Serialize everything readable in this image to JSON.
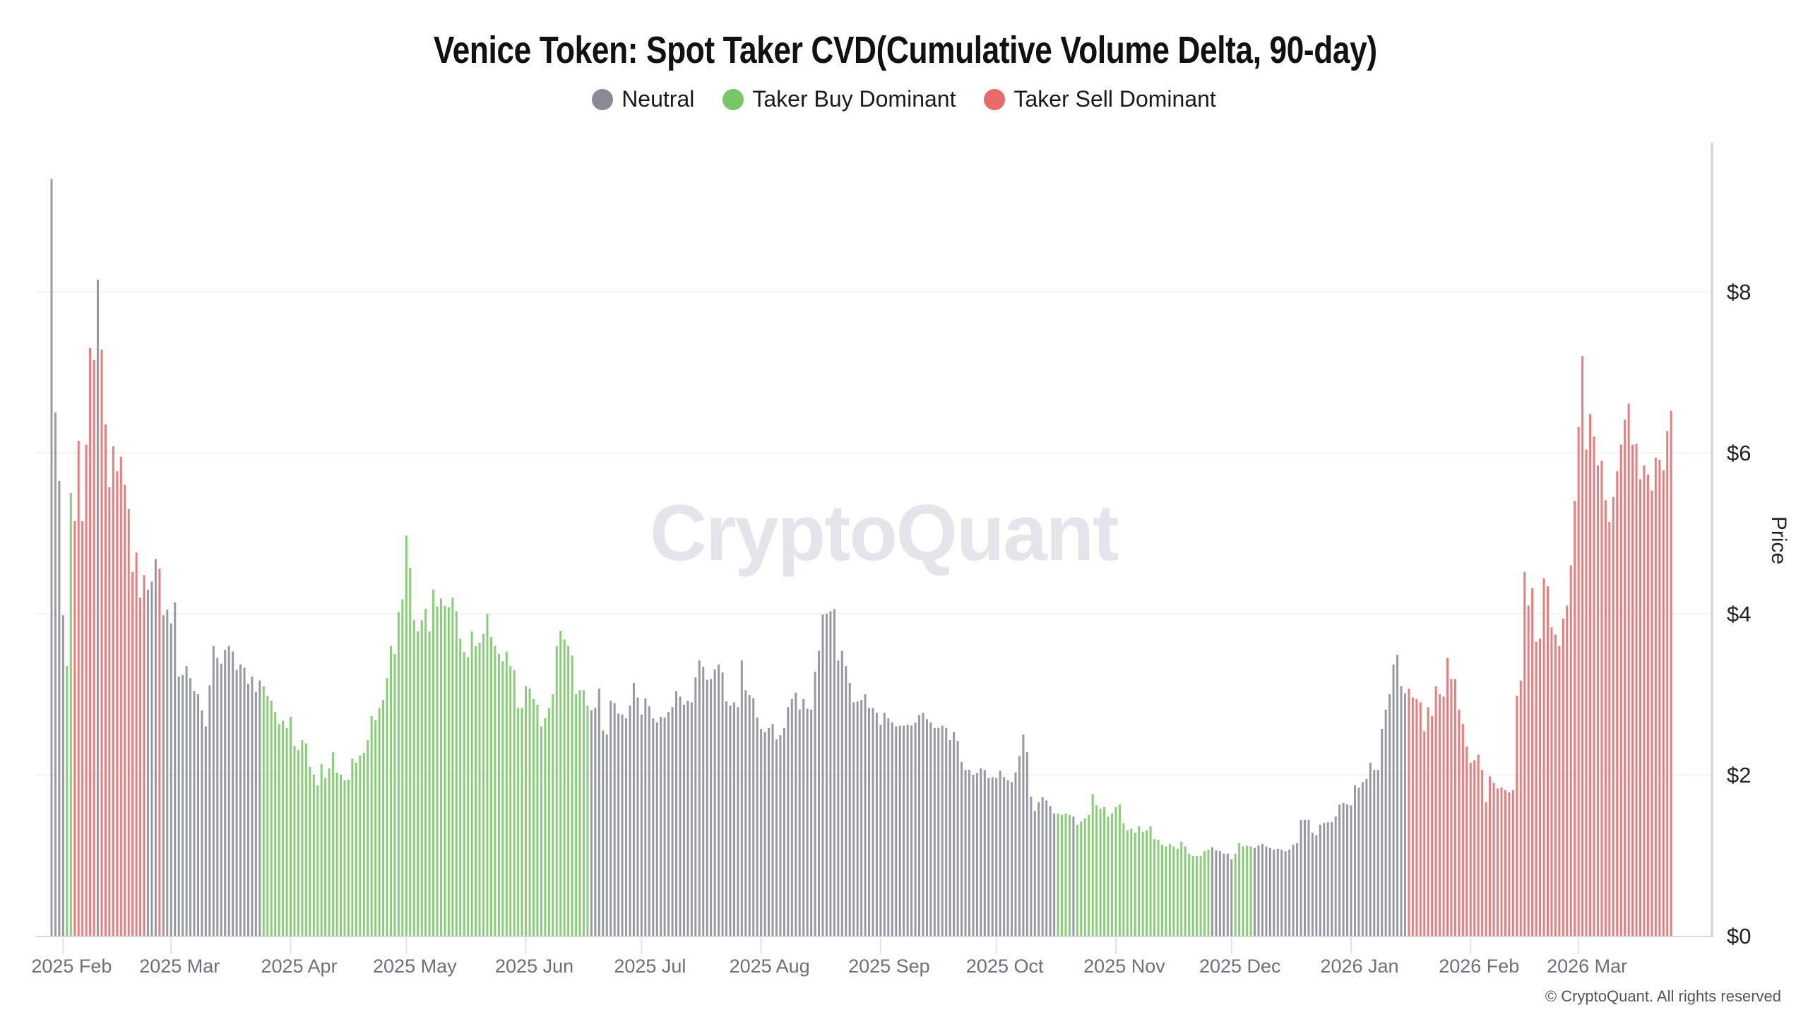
{
  "title": "Venice Token: Spot Taker CVD(Cumulative Volume Delta, 90-day)",
  "legend": [
    {
      "label": "Neutral",
      "color": "#8a8a97"
    },
    {
      "label": "Taker Buy Dominant",
      "color": "#78c664"
    },
    {
      "label": "Taker Sell Dominant",
      "color": "#e86a6a"
    }
  ],
  "watermark": "CryptoQuant",
  "copyright": "© CryptoQuant. All rights reserved",
  "chart_data": {
    "type": "bar",
    "title": "Venice Token: Spot Taker CVD(Cumulative Volume Delta, 90-day)",
    "ylabel": "Price",
    "y_axis_side": "right",
    "ylim": [
      0,
      9.6
    ],
    "y_ticks": [
      0,
      2,
      4,
      6,
      8
    ],
    "y_tick_labels": [
      "$0",
      "$2",
      "$4",
      "$6",
      "$8"
    ],
    "grid": true,
    "legend_placement": "top-center",
    "x_start_date": "2025-01-29",
    "x_end_date": "2026-03-25",
    "x_interval": "daily",
    "x_ticks": [
      {
        "date": "2025-02-01",
        "label": "2025 Feb"
      },
      {
        "date": "2025-03-01",
        "label": "2025 Mar"
      },
      {
        "date": "2025-04-01",
        "label": "2025 Apr"
      },
      {
        "date": "2025-05-01",
        "label": "2025 May"
      },
      {
        "date": "2025-06-01",
        "label": "2025 Jun"
      },
      {
        "date": "2025-07-01",
        "label": "2025 Jul"
      },
      {
        "date": "2025-08-01",
        "label": "2025 Aug"
      },
      {
        "date": "2025-09-01",
        "label": "2025 Sep"
      },
      {
        "date": "2025-10-01",
        "label": "2025 Oct"
      },
      {
        "date": "2025-11-01",
        "label": "2025 Nov"
      },
      {
        "date": "2025-12-01",
        "label": "2025 Dec"
      },
      {
        "date": "2026-01-01",
        "label": "2026 Jan"
      },
      {
        "date": "2026-02-01",
        "label": "2026 Feb"
      },
      {
        "date": "2026-03-01",
        "label": "2026 Mar"
      }
    ],
    "category_runs": [
      [
        "Neutral",
        4
      ],
      [
        "Taker Buy Dominant",
        2
      ],
      [
        "Taker Sell Dominant",
        6
      ],
      [
        "Neutral",
        1
      ],
      [
        "Taker Sell Dominant",
        12
      ],
      [
        "Neutral",
        3
      ],
      [
        "Taker Sell Dominant",
        1
      ],
      [
        "Neutral",
        26
      ],
      [
        "Taker Buy Dominant",
        85
      ],
      [
        "Neutral",
        121
      ],
      [
        "Taker Buy Dominant",
        4
      ],
      [
        "Neutral",
        1
      ],
      [
        "Taker Buy Dominant",
        35
      ],
      [
        "Neutral",
        6
      ],
      [
        "Taker Buy Dominant",
        5
      ],
      [
        "Neutral",
        40
      ],
      [
        "Taker Sell Dominant",
        69
      ]
    ],
    "values": [
      9.4,
      6.5,
      5.65,
      3.98,
      3.35,
      5.5,
      5.15,
      6.15,
      5.15,
      6.1,
      7.3,
      7.15,
      8.15,
      7.28,
      6.35,
      5.57,
      6.08,
      5.77,
      5.95,
      5.6,
      5.3,
      4.52,
      4.76,
      4.2,
      4.48,
      4.3,
      4.4,
      4.68,
      4.56,
      3.98,
      4.05,
      3.88,
      4.14,
      3.22,
      3.24,
      3.35,
      3.2,
      3.04,
      3.0,
      2.8,
      2.6,
      3.11,
      3.6,
      3.45,
      3.38,
      3.55,
      3.6,
      3.53,
      3.3,
      3.37,
      3.33,
      3.13,
      3.22,
      3.03,
      3.17,
      3.1,
      2.98,
      2.92,
      2.78,
      2.63,
      2.67,
      2.58,
      2.72,
      2.36,
      2.31,
      2.43,
      2.39,
      2.1,
      2.0,
      1.87,
      2.13,
      1.96,
      2.08,
      2.28,
      2.03,
      2.0,
      1.93,
      1.94,
      2.2,
      2.15,
      2.24,
      2.27,
      2.43,
      2.73,
      2.68,
      2.83,
      2.93,
      3.2,
      3.6,
      3.5,
      4.02,
      4.18,
      4.97,
      4.57,
      3.92,
      3.78,
      3.92,
      4.06,
      3.78,
      4.3,
      4.09,
      4.19,
      4.1,
      4.08,
      4.2,
      4.03,
      3.69,
      3.52,
      3.46,
      3.78,
      3.6,
      3.64,
      3.75,
      4.0,
      3.71,
      3.6,
      3.5,
      3.41,
      3.53,
      3.35,
      3.3,
      2.83,
      2.83,
      3.1,
      3.07,
      2.94,
      2.87,
      2.6,
      2.7,
      2.83,
      3.0,
      3.6,
      3.79,
      3.68,
      3.6,
      3.48,
      3.0,
      3.05,
      3.05,
      2.86,
      2.8,
      2.83,
      3.07,
      2.55,
      2.5,
      2.92,
      2.89,
      2.76,
      2.75,
      2.7,
      2.86,
      3.14,
      2.96,
      2.75,
      2.95,
      2.85,
      2.7,
      2.65,
      2.72,
      2.71,
      2.78,
      2.84,
      3.04,
      2.97,
      2.87,
      2.92,
      2.9,
      3.21,
      3.42,
      3.34,
      3.18,
      3.19,
      3.31,
      3.37,
      3.27,
      2.91,
      2.86,
      2.9,
      2.84,
      3.42,
      3.05,
      2.99,
      2.95,
      2.71,
      2.57,
      2.53,
      2.58,
      2.63,
      2.44,
      2.49,
      2.58,
      2.84,
      2.94,
      3.02,
      2.81,
      2.94,
      2.82,
      2.81,
      3.28,
      3.54,
      3.99,
      4.0,
      4.03,
      4.06,
      3.42,
      3.54,
      3.35,
      3.14,
      2.9,
      2.91,
      2.93,
      3.0,
      2.83,
      2.83,
      2.77,
      2.62,
      2.77,
      2.7,
      2.65,
      2.6,
      2.61,
      2.61,
      2.62,
      2.61,
      2.65,
      2.74,
      2.77,
      2.69,
      2.65,
      2.58,
      2.58,
      2.61,
      2.58,
      2.43,
      2.53,
      2.42,
      2.16,
      2.06,
      2.06,
      2.0,
      2.02,
      2.08,
      2.06,
      1.96,
      1.97,
      1.96,
      2.05,
      1.97,
      1.93,
      1.91,
      2.03,
      2.23,
      2.5,
      2.28,
      1.73,
      1.55,
      1.66,
      1.72,
      1.68,
      1.61,
      1.52,
      1.52,
      1.5,
      1.52,
      1.5,
      1.48,
      1.38,
      1.42,
      1.46,
      1.5,
      1.76,
      1.62,
      1.58,
      1.6,
      1.48,
      1.52,
      1.6,
      1.63,
      1.4,
      1.31,
      1.33,
      1.28,
      1.36,
      1.29,
      1.31,
      1.36,
      1.2,
      1.19,
      1.13,
      1.11,
      1.14,
      1.11,
      1.08,
      1.17,
      1.11,
      1.02,
      0.99,
      0.99,
      0.99,
      1.05,
      1.07,
      1.1,
      1.06,
      1.05,
      1.02,
      1.02,
      0.95,
      1.02,
      1.15,
      1.11,
      1.12,
      1.11,
      1.09,
      1.12,
      1.14,
      1.11,
      1.09,
      1.07,
      1.08,
      1.07,
      1.05,
      1.07,
      1.13,
      1.15,
      1.44,
      1.44,
      1.44,
      1.28,
      1.25,
      1.38,
      1.4,
      1.41,
      1.41,
      1.48,
      1.63,
      1.65,
      1.63,
      1.62,
      1.87,
      1.84,
      1.91,
      1.95,
      2.15,
      2.06,
      2.06,
      2.57,
      2.81,
      3.0,
      3.37,
      3.49,
      3.1,
      3.01,
      3.07,
      2.96,
      2.94,
      2.9,
      2.54,
      2.84,
      2.73,
      3.1,
      3.0,
      2.97,
      3.45,
      3.19,
      3.19,
      2.81,
      2.63,
      2.35,
      2.15,
      2.18,
      2.25,
      2.06,
      1.66,
      1.98,
      1.9,
      1.83,
      1.84,
      1.81,
      1.78,
      1.81,
      2.98,
      3.17,
      4.52,
      4.1,
      4.32,
      3.65,
      3.69,
      4.44,
      4.34,
      3.83,
      3.74,
      3.6,
      3.94,
      4.1,
      4.6,
      5.4,
      6.32,
      7.2,
      6.04,
      6.48,
      6.2,
      5.84,
      5.9,
      5.41,
      5.14,
      5.45,
      5.77,
      6.1,
      6.41,
      6.61,
      6.1,
      6.11,
      5.67,
      5.84,
      5.73,
      5.53,
      5.94,
      5.91,
      5.78,
      6.27,
      6.52
    ]
  }
}
